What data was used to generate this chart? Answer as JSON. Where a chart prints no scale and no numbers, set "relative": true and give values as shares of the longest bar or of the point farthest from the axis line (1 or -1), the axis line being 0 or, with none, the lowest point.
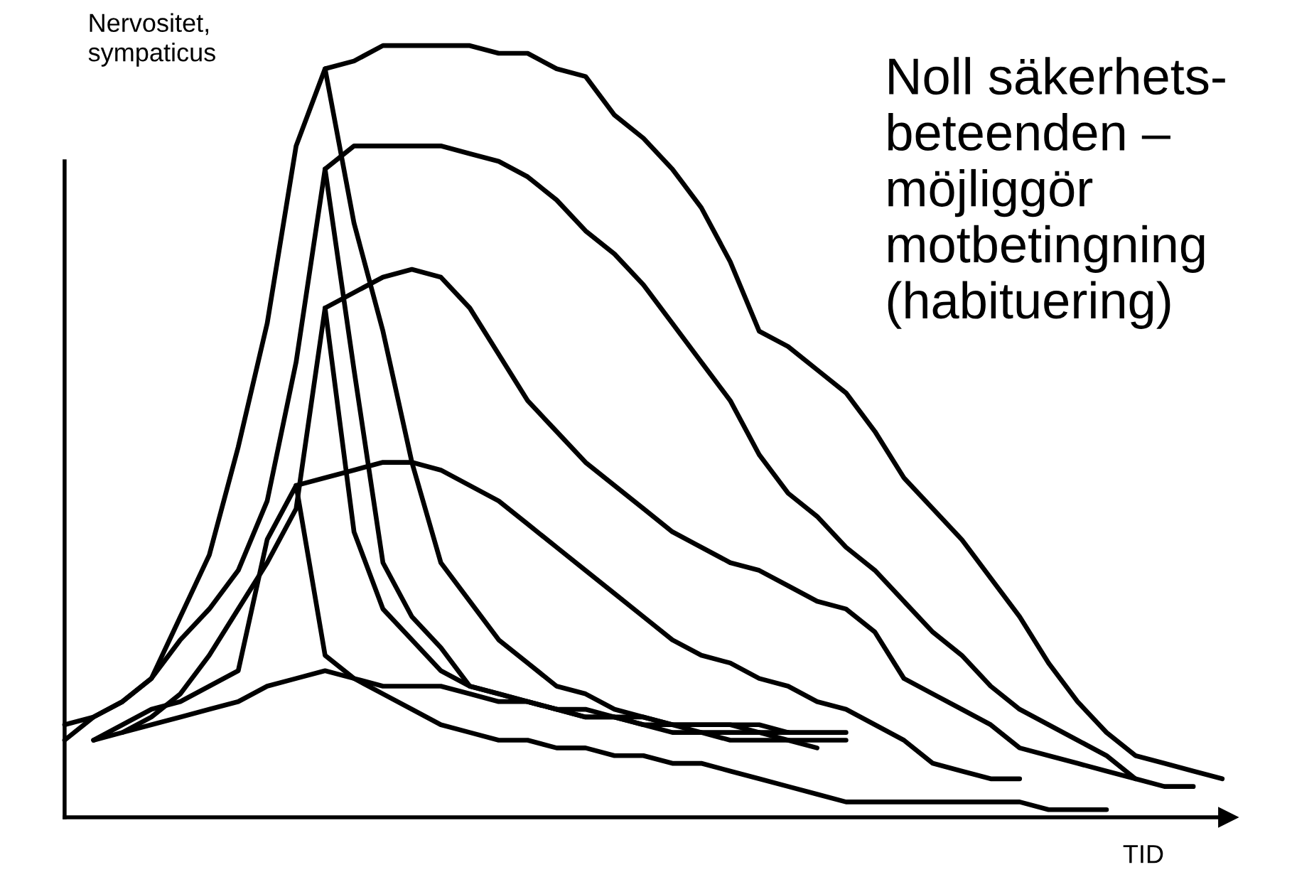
{
  "chart_data": {
    "type": "line",
    "relative": true,
    "ylabel": "Nervositet,\nsympaticus",
    "xlabel": "TID",
    "annotations": [
      "Noll säkerhets-\nbeteenden –\nmöjliggör\nmotbetingning\n(habituering)"
    ],
    "categories": [
      null,
      null,
      null,
      null,
      null,
      null,
      null,
      null,
      null,
      null,
      null,
      null,
      null,
      null,
      null,
      null,
      null,
      null,
      null,
      null,
      null,
      null,
      null,
      null,
      null,
      null,
      null,
      null,
      null,
      null,
      null,
      null,
      null,
      null,
      null,
      null,
      null,
      null,
      null,
      null,
      null
    ],
    "marker": "none",
    "line_style": "solid",
    "series": [
      {
        "color": "#000000",
        "values": [
          0.12,
          0.13,
          0.15,
          0.18,
          0.26,
          0.34,
          0.48,
          0.64,
          0.87,
          0.97,
          0.98,
          1.0,
          1.0,
          1.0,
          1.0,
          0.99,
          0.99,
          0.97,
          0.96,
          0.91,
          0.88,
          0.84,
          0.79,
          0.72,
          0.63,
          0.61,
          0.58,
          0.55,
          0.5,
          0.44,
          0.4,
          0.36,
          0.31,
          0.26,
          0.2,
          0.15,
          0.11,
          0.08,
          0.07,
          0.06,
          0.05
        ]
      },
      {
        "color": "#000000",
        "values": [
          0.1,
          0.13,
          0.15,
          0.18,
          0.23,
          0.27,
          0.32,
          0.41,
          0.59,
          0.84,
          0.87,
          0.87,
          0.87,
          0.87,
          0.86,
          0.85,
          0.83,
          0.8,
          0.76,
          0.73,
          0.69,
          0.64,
          0.59,
          0.54,
          0.47,
          0.42,
          0.39,
          0.35,
          0.32,
          0.28,
          0.24,
          0.21,
          0.17,
          0.14,
          0.12,
          0.1,
          0.08,
          0.05,
          0.04,
          0.04,
          null
        ]
      },
      {
        "color": "#000000",
        "values": [
          null,
          0.1,
          0.11,
          0.13,
          0.16,
          0.21,
          0.27,
          0.33,
          0.4,
          0.66,
          0.68,
          0.7,
          0.71,
          0.7,
          0.66,
          0.6,
          0.54,
          0.5,
          0.46,
          0.43,
          0.4,
          0.37,
          0.35,
          0.33,
          0.32,
          0.3,
          0.28,
          0.27,
          0.24,
          0.18,
          0.16,
          0.14,
          0.12,
          0.09,
          0.08,
          0.07,
          0.06,
          0.05,
          null,
          null,
          null
        ]
      },
      {
        "color": "#000000",
        "values": [
          null,
          0.1,
          0.12,
          0.14,
          0.15,
          0.17,
          0.19,
          0.36,
          0.43,
          0.44,
          0.45,
          0.46,
          0.46,
          0.45,
          0.43,
          0.41,
          0.38,
          0.35,
          0.32,
          0.29,
          0.26,
          0.23,
          0.21,
          0.2,
          0.18,
          0.17,
          0.15,
          0.14,
          0.12,
          0.1,
          0.07,
          0.06,
          0.05,
          0.05,
          null,
          null,
          null,
          null,
          null,
          null,
          null
        ]
      },
      {
        "color": "#000000",
        "values": [
          null,
          null,
          0.11,
          0.12,
          0.13,
          0.14,
          0.15,
          0.17,
          0.18,
          0.19,
          0.18,
          0.17,
          0.17,
          0.17,
          0.16,
          0.15,
          0.15,
          0.14,
          0.14,
          0.13,
          0.12,
          0.12,
          0.11,
          0.11,
          0.11,
          0.1,
          0.1,
          0.1,
          null,
          null,
          null,
          null,
          null,
          null,
          null,
          null,
          null,
          null,
          null,
          null,
          null
        ]
      },
      {
        "color": "#000000",
        "values": [
          null,
          null,
          null,
          null,
          null,
          null,
          null,
          null,
          null,
          0.97,
          0.77,
          0.63,
          0.46,
          0.33,
          0.28,
          0.23,
          0.2,
          0.17,
          0.16,
          0.14,
          0.13,
          0.12,
          0.12,
          0.12,
          0.11,
          0.11,
          null,
          null,
          null,
          null,
          null,
          null,
          null,
          null,
          null,
          null,
          null,
          null,
          null,
          null,
          null
        ]
      },
      {
        "color": "#000000",
        "values": [
          null,
          null,
          null,
          null,
          null,
          null,
          null,
          null,
          null,
          0.84,
          0.58,
          0.33,
          0.26,
          0.22,
          0.17,
          0.16,
          0.15,
          0.14,
          0.13,
          0.13,
          0.12,
          0.11,
          0.11,
          0.1,
          0.1,
          0.1,
          0.09,
          null,
          null,
          null,
          null,
          null,
          null,
          null,
          null,
          null,
          null,
          null,
          null,
          null,
          null
        ]
      },
      {
        "color": "#000000",
        "values": [
          null,
          null,
          null,
          null,
          null,
          null,
          null,
          null,
          null,
          0.66,
          0.37,
          0.27,
          0.23,
          0.19,
          0.17,
          0.16,
          0.15,
          0.14,
          0.13,
          0.13,
          0.13,
          0.12,
          0.12,
          0.12,
          0.12,
          0.11,
          0.11,
          0.11,
          null,
          null,
          null,
          null,
          null,
          null,
          null,
          null,
          null,
          null,
          null,
          null,
          null
        ]
      },
      {
        "color": "#000000",
        "values": [
          null,
          null,
          null,
          null,
          null,
          null,
          null,
          null,
          0.43,
          0.21,
          0.18,
          0.16,
          0.14,
          0.12,
          0.11,
          0.1,
          0.1,
          0.09,
          0.09,
          0.08,
          0.08,
          0.07,
          0.07,
          0.06,
          0.05,
          0.04,
          0.03,
          0.02,
          0.02,
          0.02,
          0.02,
          0.02,
          0.02,
          0.02,
          0.01,
          0.01,
          0.01,
          null,
          null,
          null,
          null
        ]
      }
    ]
  }
}
